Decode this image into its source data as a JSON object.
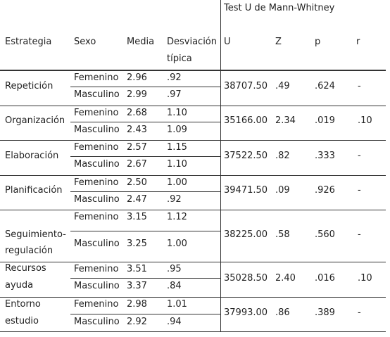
{
  "header": {
    "group_label": "Test U de Mann-Whitney",
    "strategy": "Estrategia",
    "sex": "Sexo",
    "mean": "Media",
    "sd_line1": "Desviación",
    "sd_line2": "típica",
    "u": "U",
    "z": "Z",
    "p": "p",
    "r": "r"
  },
  "rows": [
    {
      "strategy": [
        "Repetición"
      ],
      "groups": [
        {
          "sex": "Femenino",
          "mean": "2.96",
          "sd": ".92"
        },
        {
          "sex": "Masculino",
          "mean": "2.99",
          "sd": ".97"
        }
      ],
      "u": "38707.50",
      "z": ".49",
      "p": ".624",
      "r": "-"
    },
    {
      "strategy": [
        "Organización"
      ],
      "groups": [
        {
          "sex": "Femenino",
          "mean": "2.68",
          "sd": "1.10"
        },
        {
          "sex": "Masculino",
          "mean": "2.43",
          "sd": "1.09"
        }
      ],
      "u": "35166.00",
      "z": "2.34",
      "p": ".019",
      "r": ".10"
    },
    {
      "strategy": [
        "Elaboración"
      ],
      "groups": [
        {
          "sex": "Femenino",
          "mean": "2.57",
          "sd": "1.15"
        },
        {
          "sex": "Masculino",
          "mean": "2.67",
          "sd": "1.10"
        }
      ],
      "u": "37522.50",
      "z": ".82",
      "p": ".333",
      "r": "-"
    },
    {
      "strategy": [
        "Planificación"
      ],
      "groups": [
        {
          "sex": "Femenino",
          "mean": "2.50",
          "sd": "1.00"
        },
        {
          "sex": "Masculino",
          "mean": "2.47",
          "sd": ".92"
        }
      ],
      "u": "39471.50",
      "z": ".09",
      "p": ".926",
      "r": "-"
    },
    {
      "strategy": [
        "Seguimiento-",
        "regulación"
      ],
      "groups": [
        {
          "sex": "Femenino",
          "mean": "3.15",
          "sd": "1.12"
        },
        {
          "sex": "Masculino",
          "mean": "3.25",
          "sd": "1.00"
        }
      ],
      "u": "38225.00",
      "z": ".58",
      "p": ".560",
      "r": "-"
    },
    {
      "strategy": [
        "Recursos",
        "ayuda"
      ],
      "groups": [
        {
          "sex": "Femenino",
          "mean": "3.51",
          "sd": ".95"
        },
        {
          "sex": "Masculino",
          "mean": "3.37",
          "sd": ".84"
        }
      ],
      "u": "35028.50",
      "z": "2.40",
      "p": ".016",
      "r": ".10"
    },
    {
      "strategy": [
        "Entorno",
        "estudio"
      ],
      "groups": [
        {
          "sex": "Femenino",
          "mean": "2.98",
          "sd": "1.01"
        },
        {
          "sex": "Masculino",
          "mean": "2.92",
          "sd": ".94"
        }
      ],
      "u": "37993.00",
      "z": ".86",
      "p": ".389",
      "r": "-"
    }
  ]
}
